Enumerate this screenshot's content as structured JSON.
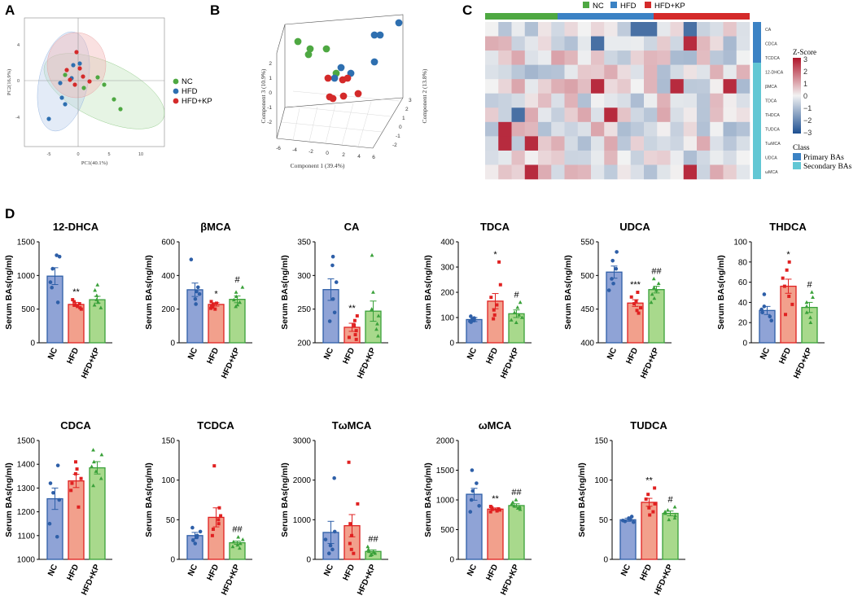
{
  "panel_letters": {
    "a": "A",
    "b": "B",
    "c": "C",
    "d": "D"
  },
  "colors": {
    "nc": "#2e5fa8",
    "nc_fill": "#8fa3d6",
    "hfd": "#e02121",
    "hfd_fill": "#f2a08c",
    "hfdkp": "#3aa13a",
    "hfdkp_fill": "#a8d98c",
    "pca_nc": "#4ea842",
    "pca_hfd": "#2e6fb0",
    "pca_hfdkp": "#d42a2a",
    "class_primary": "#3b82c4",
    "class_secondary": "#62c7d4"
  },
  "pca": {
    "xlabel": "PC1(40.1%)",
    "ylabel": "PC2(16.9%)",
    "xticks": [
      "-5",
      "0",
      "5",
      "10"
    ],
    "yticks": [
      "4",
      "0",
      "-4"
    ],
    "legend": [
      "NC",
      "HFD",
      "HFD+KP"
    ]
  },
  "pca3d": {
    "xlabel": "Component 1 (39.4%)",
    "ylabel": "Component 3 (10.9%)",
    "zlabel": "Component 2 (13.8%)",
    "xticks": [
      "-6",
      "-4",
      "-2",
      "0",
      "2",
      "4",
      "6"
    ],
    "yticks": [
      "-2",
      "-1",
      "0",
      "1",
      "2"
    ],
    "zticks": [
      "-2",
      "-1",
      "0",
      "1",
      "2",
      "3"
    ]
  },
  "heatmap": {
    "groups": [
      "NC",
      "HFD",
      "HFD+KP"
    ],
    "rows": [
      "CA",
      "CDCA",
      "TCDCA",
      "12-DHCA",
      "βMCA",
      "TDCA",
      "THDCA",
      "TUDCA",
      "TωMCA",
      "UDCA",
      "ωMCA"
    ],
    "row_class": [
      0,
      0,
      0,
      1,
      1,
      1,
      1,
      1,
      1,
      1,
      1
    ],
    "legend_title": "Z-Score",
    "legend_ticks": [
      "3",
      "2",
      "1",
      "0",
      "−1",
      "−2",
      "−3"
    ],
    "class_title": "Class",
    "class_labels": [
      "Primary BAs",
      "Secondary BAs"
    ]
  },
  "chart_data": [
    {
      "type": "bar",
      "title": "12-DHCA",
      "ylabel": "Serum BAs(ng/ml)",
      "categories": [
        "NC",
        "HFD",
        "HFD+KP"
      ],
      "values": [
        990,
        570,
        640
      ],
      "errors": [
        125,
        30,
        50
      ],
      "ylim": [
        0,
        1500
      ],
      "yticks": [
        0,
        500,
        1000,
        1500
      ],
      "marks": [
        "",
        "**",
        ""
      ],
      "points": [
        [
          1300,
          1280,
          1100,
          900,
          820,
          600
        ],
        [
          640,
          610,
          580,
          560,
          540,
          520,
          500
        ],
        [
          860,
          780,
          700,
          640,
          600,
          560,
          520
        ]
      ]
    },
    {
      "type": "bar",
      "title": "βMCA",
      "ylabel": "Serum BAs(ng/ml)",
      "categories": [
        "NC",
        "HFD",
        "HFD+KP"
      ],
      "values": [
        315,
        228,
        258
      ],
      "errors": [
        40,
        10,
        20
      ],
      "ylim": [
        0,
        600
      ],
      "yticks": [
        0,
        200,
        400,
        600
      ],
      "marks": [
        "",
        "*",
        "#"
      ],
      "points": [
        [
          495,
          330,
          305,
          290,
          260,
          230
        ],
        [
          245,
          235,
          228,
          220,
          212,
          205,
          200
        ],
        [
          330,
          300,
          275,
          255,
          240,
          225,
          215
        ]
      ]
    },
    {
      "type": "bar",
      "title": "CA",
      "ylabel": "Serum BAs(ng/ml)",
      "categories": [
        "NC",
        "HFD",
        "HFD+KP"
      ],
      "values": [
        279,
        223,
        247
      ],
      "errors": [
        16,
        6,
        15
      ],
      "ylim": [
        200,
        350
      ],
      "yticks": [
        200,
        250,
        300,
        350
      ],
      "marks": [
        "",
        "**",
        ""
      ],
      "points": [
        [
          328,
          315,
          290,
          265,
          245,
          232
        ],
        [
          240,
          233,
          226,
          218,
          212,
          208,
          205
        ],
        [
          330,
          275,
          250,
          240,
          228,
          220,
          210
        ]
      ]
    },
    {
      "type": "bar",
      "title": "TDCA",
      "ylabel": "Serum BAs(ng/ml)",
      "categories": [
        "NC",
        "HFD",
        "HFD+KP"
      ],
      "values": [
        92,
        165,
        115
      ],
      "errors": [
        8,
        30,
        15
      ],
      "ylim": [
        0,
        400
      ],
      "yticks": [
        0,
        100,
        200,
        300,
        400
      ],
      "marks": [
        "",
        "*",
        "#"
      ],
      "points": [
        [
          105,
          98,
          92,
          88,
          85,
          82
        ],
        [
          320,
          230,
          180,
          150,
          130,
          110,
          95
        ],
        [
          160,
          140,
          120,
          110,
          100,
          90,
          80
        ]
      ]
    },
    {
      "type": "bar",
      "title": "UDCA",
      "ylabel": "Serum BAs(ng/ml)",
      "categories": [
        "NC",
        "HFD",
        "HFD+KP"
      ],
      "values": [
        505,
        459,
        479
      ],
      "errors": [
        9,
        5,
        5
      ],
      "ylim": [
        400,
        550
      ],
      "yticks": [
        400,
        450,
        500,
        550
      ],
      "marks": [
        "",
        "***",
        "##"
      ],
      "points": [
        [
          535,
          522,
          510,
          495,
          488,
          478
        ],
        [
          475,
          468,
          462,
          458,
          452,
          448,
          444
        ],
        [
          495,
          488,
          482,
          478,
          472,
          466,
          460
        ]
      ]
    },
    {
      "type": "bar",
      "title": "THDCA",
      "ylabel": "Serum BAs(ng/ml)",
      "categories": [
        "NC",
        "HFD",
        "HFD+KP"
      ],
      "values": [
        32,
        56,
        35
      ],
      "errors": [
        4,
        7,
        5
      ],
      "ylim": [
        0,
        100
      ],
      "yticks": [
        0,
        20,
        40,
        60,
        80,
        100
      ],
      "marks": [
        "",
        "*",
        "#"
      ],
      "points": [
        [
          48,
          36,
          33,
          30,
          26,
          22
        ],
        [
          80,
          72,
          64,
          56,
          46,
          38,
          28
        ],
        [
          50,
          45,
          40,
          36,
          30,
          25,
          20
        ]
      ]
    },
    {
      "type": "bar",
      "title": "CDCA",
      "ylabel": "Serum BAs(ng/ml)",
      "categories": [
        "NC",
        "HFD",
        "HFD+KP"
      ],
      "values": [
        1255,
        1330,
        1385
      ],
      "errors": [
        45,
        28,
        26
      ],
      "ylim": [
        1000,
        1500
      ],
      "yticks": [
        1000,
        1100,
        1200,
        1300,
        1400,
        1500
      ],
      "marks": [
        "",
        "",
        ""
      ],
      "points": [
        [
          1395,
          1320,
          1280,
          1250,
          1150,
          1095
        ],
        [
          1410,
          1380,
          1360,
          1340,
          1320,
          1290,
          1220
        ],
        [
          1460,
          1440,
          1410,
          1390,
          1370,
          1340,
          1310
        ]
      ]
    },
    {
      "type": "bar",
      "title": "TCDCA",
      "ylabel": "Serum BAs(ng/ml)",
      "categories": [
        "NC",
        "HFD",
        "HFD+KP"
      ],
      "values": [
        30,
        53,
        21
      ],
      "errors": [
        4,
        12,
        2
      ],
      "ylim": [
        0,
        150
      ],
      "yticks": [
        0,
        50,
        100,
        150
      ],
      "marks": [
        "",
        "",
        "##"
      ],
      "points": [
        [
          40,
          35,
          30,
          28,
          24,
          20
        ],
        [
          118,
          65,
          55,
          50,
          45,
          38,
          30
        ],
        [
          28,
          25,
          22,
          20,
          18,
          16,
          14
        ]
      ]
    },
    {
      "type": "bar",
      "title": "TωMCA",
      "ylabel": "Serum BAs(ng/ml)",
      "categories": [
        "NC",
        "HFD",
        "HFD+KP"
      ],
      "values": [
        680,
        850,
        200
      ],
      "errors": [
        280,
        280,
        40
      ],
      "ylim": [
        0,
        3000
      ],
      "yticks": [
        0,
        1000,
        2000,
        3000
      ],
      "marks": [
        "",
        "",
        "##"
      ],
      "points": [
        [
          2050,
          700,
          500,
          350,
          250,
          150
        ],
        [
          2450,
          1400,
          900,
          600,
          400,
          250,
          150
        ],
        [
          320,
          250,
          200,
          180,
          150,
          120,
          100
        ]
      ]
    },
    {
      "type": "bar",
      "title": "ωMCA",
      "ylabel": "Serum BAs(ng/ml)",
      "categories": [
        "NC",
        "HFD",
        "HFD+KP"
      ],
      "values": [
        1095,
        845,
        905
      ],
      "errors": [
        100,
        20,
        30
      ],
      "ylim": [
        0,
        2000
      ],
      "yticks": [
        0,
        500,
        1000,
        1500,
        2000
      ],
      "marks": [
        "",
        "**",
        "##"
      ],
      "points": [
        [
          1500,
          1280,
          1150,
          1000,
          900,
          800
        ],
        [
          890,
          870,
          850,
          840,
          830,
          815,
          800
        ],
        [
          1000,
          960,
          930,
          900,
          880,
          860,
          840
        ]
      ]
    },
    {
      "type": "bar",
      "title": "TUDCA",
      "ylabel": "Serum BAs(ng/ml)",
      "categories": [
        "NC",
        "HFD",
        "HFD+KP"
      ],
      "values": [
        50,
        72,
        58
      ],
      "errors": [
        2,
        5,
        3
      ],
      "ylim": [
        0,
        150
      ],
      "yticks": [
        0,
        50,
        100,
        150
      ],
      "marks": [
        "",
        "**",
        "#"
      ],
      "points": [
        [
          54,
          52,
          50,
          49,
          48,
          47
        ],
        [
          90,
          82,
          76,
          70,
          65,
          60,
          56
        ],
        [
          66,
          62,
          60,
          58,
          55,
          52,
          50
        ]
      ]
    }
  ]
}
